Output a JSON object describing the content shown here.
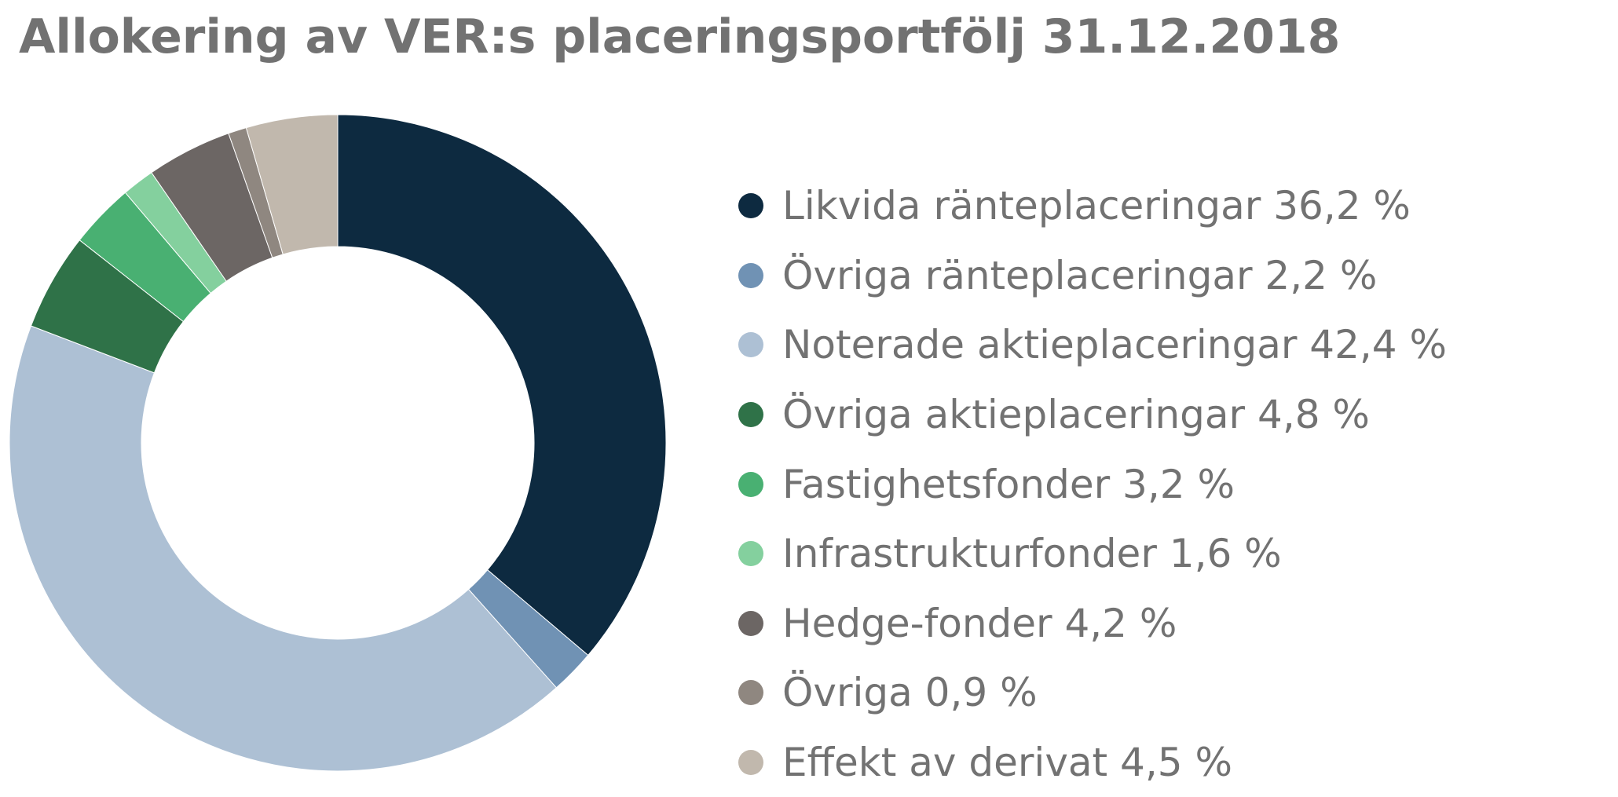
{
  "chart_data": {
    "type": "pie",
    "title": "Allokering av VER:s placeringsportfölj 31.12.2018",
    "unit": "%",
    "series": [
      {
        "name": "Likvida ränteplaceringar",
        "value": 36.2,
        "color": "#0d2a40",
        "label": "Likvida ränteplaceringar 36,2 %"
      },
      {
        "name": "Övriga ränteplaceringar",
        "value": 2.2,
        "color": "#7092b4",
        "label": "Övriga ränteplaceringar 2,2 %"
      },
      {
        "name": "Noterade aktieplaceringar",
        "value": 42.4,
        "color": "#adc0d4",
        "label": "Noterade aktieplaceringar 42,4 %"
      },
      {
        "name": "Övriga aktieplaceringar",
        "value": 4.8,
        "color": "#2f7248",
        "label": "Övriga aktieplaceringar 4,8 %"
      },
      {
        "name": "Fastighetsfonder",
        "value": 3.2,
        "color": "#49b072",
        "label": "Fastighetsfonder 3,2 %"
      },
      {
        "name": "Infrastrukturfonder",
        "value": 1.6,
        "color": "#84d09e",
        "label": "Infrastrukturfonder 1,6 %"
      },
      {
        "name": "Hedge-fonder",
        "value": 4.2,
        "color": "#6c6664",
        "label": "Hedge-fonder 4,2 %"
      },
      {
        "name": "Övriga",
        "value": 0.9,
        "color": "#8f8780",
        "label": "Övriga 0,9 %"
      },
      {
        "name": "Effekt av derivat",
        "value": 4.5,
        "color": "#c1b8ad",
        "label": "Effekt av derivat 4,5 %"
      }
    ],
    "legend_position": "right",
    "start_angle": "top",
    "direction": "clockwise",
    "hole": true
  }
}
